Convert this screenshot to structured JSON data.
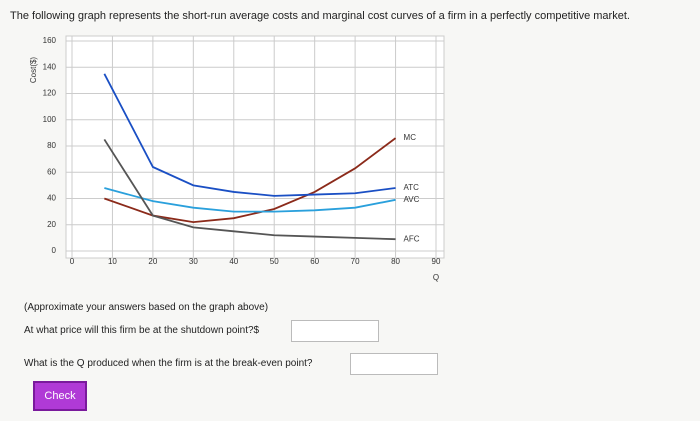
{
  "question": "The following graph represents the short-run average costs and marginal cost curves of a firm in a perfectly competitive market.",
  "chart_data": {
    "type": "line",
    "ylabel": "Cost($)",
    "xlabel": "Q",
    "x": [
      8,
      20,
      30,
      40,
      50,
      60,
      70,
      80
    ],
    "series": [
      {
        "name": "MC",
        "color": "#8b2a1a",
        "values": [
          40,
          27,
          22,
          25,
          32,
          45,
          63,
          86
        ]
      },
      {
        "name": "ATC",
        "color": "#1a4fc4",
        "values": [
          135,
          64,
          50,
          45,
          42,
          43,
          44,
          48
        ]
      },
      {
        "name": "AVC",
        "color": "#2aa0dc",
        "values": [
          48,
          38,
          33,
          30,
          30,
          31,
          33,
          39
        ]
      },
      {
        "name": "AFC",
        "color": "#555555",
        "values": [
          85,
          27,
          18,
          15,
          12,
          11,
          10,
          9
        ]
      }
    ],
    "xlim": [
      0,
      90
    ],
    "xticks": [
      0,
      10,
      20,
      30,
      40,
      50,
      60,
      70,
      80,
      90
    ],
    "ylim": [
      0,
      160
    ],
    "yticks": [
      0,
      20,
      40,
      60,
      80,
      100,
      120,
      140,
      160
    ],
    "grid": true
  },
  "instructions": "(Approximate your answers based on the graph above)",
  "questions": [
    {
      "text": "At what price will this firm be at the shutdown point?$"
    },
    {
      "text": "What is the Q produced when the firm is at the break-even point?"
    }
  ],
  "button": "Check"
}
